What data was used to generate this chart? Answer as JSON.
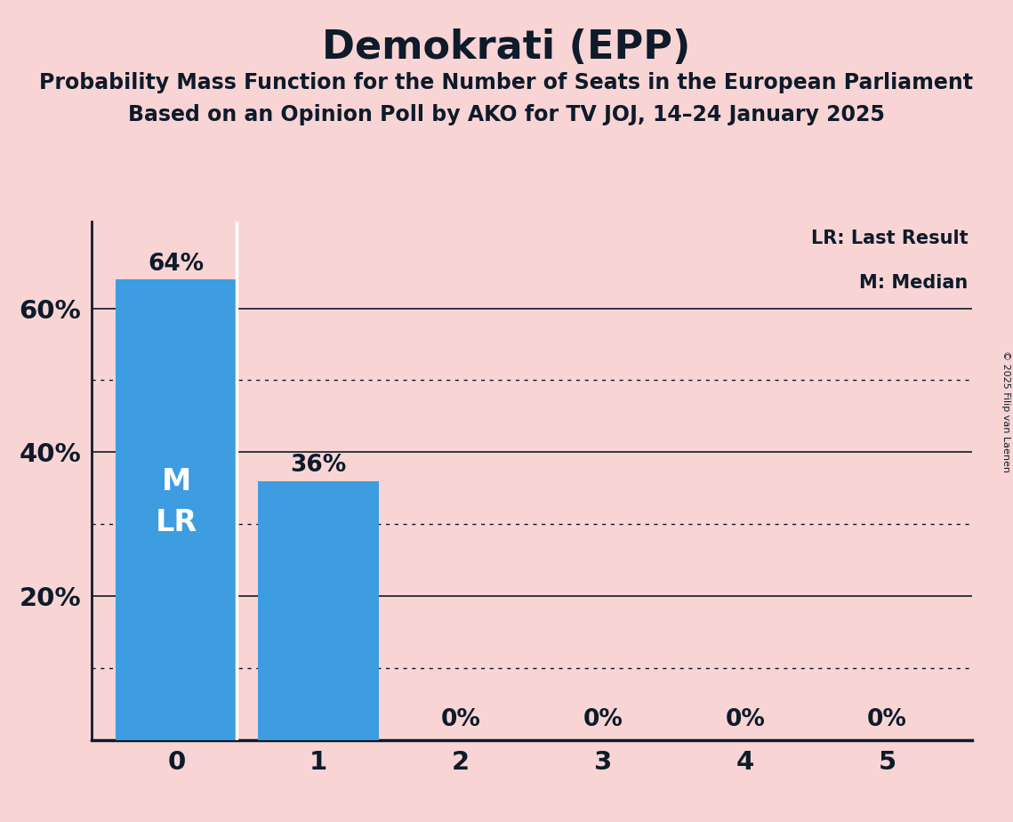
{
  "title": "Demokrati (EPP)",
  "subtitle1": "Probability Mass Function for the Number of Seats in the European Parliament",
  "subtitle2": "Based on an Opinion Poll by AKO for TV JOJ, 14–24 January 2025",
  "copyright": "© 2025 Filip van Laenen",
  "categories": [
    0,
    1,
    2,
    3,
    4,
    5
  ],
  "values": [
    0.64,
    0.36,
    0.0,
    0.0,
    0.0,
    0.0
  ],
  "bar_color": "#3d9de0",
  "background_color": "#f9d4d4",
  "text_color": "#0d1b2a",
  "bar_labels": [
    "64%",
    "36%",
    "0%",
    "0%",
    "0%",
    "0%"
  ],
  "bar_label_above": [
    true,
    true,
    false,
    false,
    false,
    false
  ],
  "legend": [
    "LR: Last Result",
    "M: Median"
  ],
  "ylim": [
    0,
    0.72
  ],
  "yticks": [
    0.0,
    0.2,
    0.4,
    0.6
  ],
  "ytick_labels": [
    "",
    "20%",
    "40%",
    "60%"
  ],
  "solid_gridlines": [
    0.2,
    0.4,
    0.6
  ],
  "dotted_gridlines": [
    0.1,
    0.3,
    0.5
  ]
}
